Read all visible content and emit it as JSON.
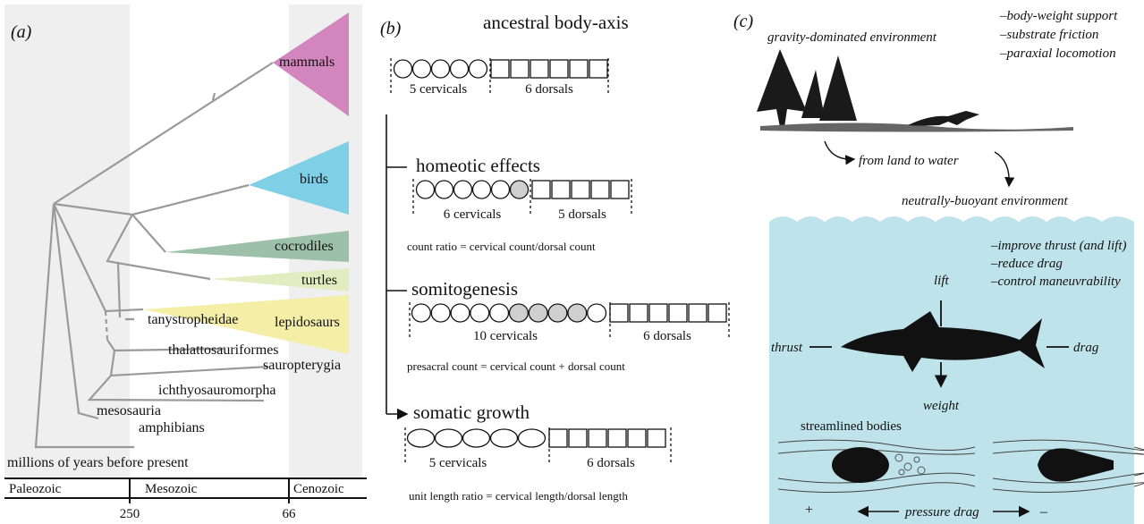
{
  "panel_a": {
    "label": "(a)",
    "clades": [
      "mammals",
      "birds",
      "cocrodiles",
      "turtles",
      "lepidosaurs"
    ],
    "taxa": [
      "tanystropheidae",
      "thalattosauriformes",
      "sauropterygia",
      "ichthyosauromorpha",
      "mesosauria",
      "amphibians"
    ],
    "timescale": {
      "title": "millions of years before present",
      "eras": [
        "Paleozoic",
        "Mesozoic",
        "Cenozoic"
      ],
      "ticks": [
        250,
        66
      ]
    }
  },
  "panel_b": {
    "label": "(b)",
    "ancestral": {
      "title": "ancestral body-axis",
      "cervicals": "5 cervicals",
      "dorsals": "6 dorsals"
    },
    "homeotic": {
      "title": "homeotic effects",
      "cervicals": "6 cervicals",
      "dorsals": "5 dorsals",
      "formula": "count ratio = cervical count/dorsal count"
    },
    "somitogenesis": {
      "title": "somitogenesis",
      "cervicals": "10 cervicals",
      "dorsals": "6 dorsals",
      "formula": "presacral count = cervical count + dorsal count"
    },
    "somatic": {
      "title": "somatic growth",
      "cervicals": "5 cervicals",
      "dorsals": "6 dorsals",
      "formula": "unit length ratio = cervical length/dorsal length"
    }
  },
  "panel_c": {
    "label": "(c)",
    "land_title": "gravity-dominated environment",
    "land_factors": [
      "–body-weight support",
      "–substrate friction",
      "–paraxial locomotion"
    ],
    "transition": "from land to water",
    "water_title": "neutrally-buoyant environment",
    "water_factors": [
      "–improve thrust (and lift)",
      "–reduce drag",
      "–control maneuvrability"
    ],
    "forces": {
      "lift": "lift",
      "thrust": "thrust",
      "drag": "drag",
      "weight": "weight"
    },
    "bodies_title": "streamlined bodies",
    "plus": "+",
    "pressure_drag": "pressure drag",
    "minus": "–"
  }
}
